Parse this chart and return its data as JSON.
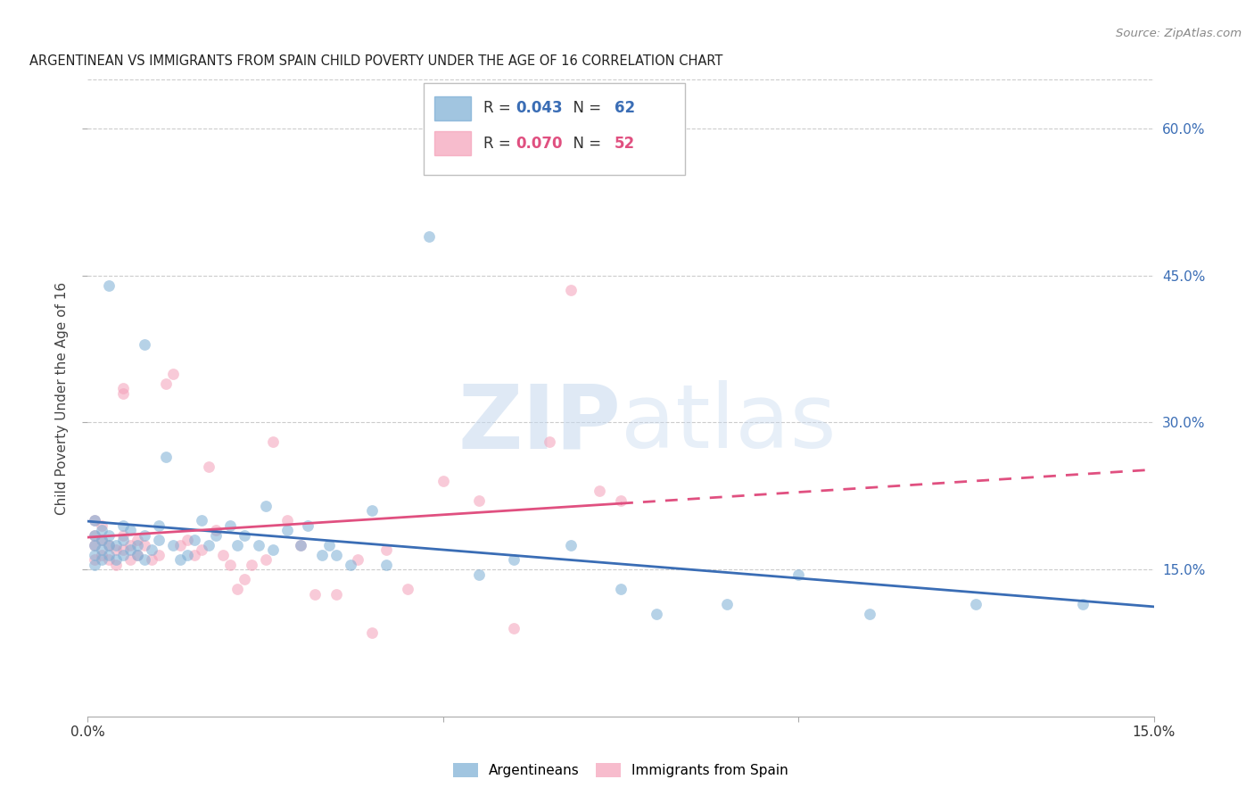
{
  "title": "ARGENTINEAN VS IMMIGRANTS FROM SPAIN CHILD POVERTY UNDER THE AGE OF 16 CORRELATION CHART",
  "source": "Source: ZipAtlas.com",
  "ylabel": "Child Poverty Under the Age of 16",
  "xlim": [
    0.0,
    0.15
  ],
  "ylim": [
    0.0,
    0.65
  ],
  "yticks": [
    0.15,
    0.3,
    0.45,
    0.6
  ],
  "ytick_labels": [
    "15.0%",
    "30.0%",
    "45.0%",
    "60.0%"
  ],
  "background_color": "#ffffff",
  "grid_color": "#cccccc",
  "blue_color": "#7aadd4",
  "pink_color": "#f4a0b8",
  "line_blue": "#3a6db5",
  "line_pink": "#e05080",
  "watermark_zip": "#c8d8ee",
  "watermark_atlas": "#c8d8ee",
  "marker_size": 85,
  "marker_alpha": 0.55,
  "blue_x": [
    0.001,
    0.001,
    0.001,
    0.001,
    0.001,
    0.002,
    0.002,
    0.002,
    0.002,
    0.003,
    0.003,
    0.003,
    0.004,
    0.004,
    0.005,
    0.005,
    0.005,
    0.006,
    0.006,
    0.007,
    0.007,
    0.008,
    0.008,
    0.009,
    0.01,
    0.01,
    0.011,
    0.012,
    0.013,
    0.014,
    0.015,
    0.016,
    0.017,
    0.018,
    0.02,
    0.021,
    0.022,
    0.024,
    0.025,
    0.026,
    0.028,
    0.03,
    0.031,
    0.033,
    0.034,
    0.035,
    0.037,
    0.04,
    0.042,
    0.048,
    0.055,
    0.06,
    0.068,
    0.075,
    0.08,
    0.09,
    0.1,
    0.11,
    0.125,
    0.14,
    0.003,
    0.008
  ],
  "blue_y": [
    0.185,
    0.175,
    0.165,
    0.155,
    0.2,
    0.17,
    0.16,
    0.18,
    0.19,
    0.175,
    0.165,
    0.185,
    0.16,
    0.175,
    0.18,
    0.165,
    0.195,
    0.17,
    0.19,
    0.165,
    0.175,
    0.185,
    0.16,
    0.17,
    0.18,
    0.195,
    0.265,
    0.175,
    0.16,
    0.165,
    0.18,
    0.2,
    0.175,
    0.185,
    0.195,
    0.175,
    0.185,
    0.175,
    0.215,
    0.17,
    0.19,
    0.175,
    0.195,
    0.165,
    0.175,
    0.165,
    0.155,
    0.21,
    0.155,
    0.49,
    0.145,
    0.16,
    0.175,
    0.13,
    0.105,
    0.115,
    0.145,
    0.105,
    0.115,
    0.115,
    0.44,
    0.38
  ],
  "pink_x": [
    0.001,
    0.001,
    0.001,
    0.001,
    0.002,
    0.002,
    0.002,
    0.003,
    0.003,
    0.004,
    0.004,
    0.005,
    0.005,
    0.006,
    0.006,
    0.007,
    0.007,
    0.008,
    0.009,
    0.01,
    0.011,
    0.012,
    0.013,
    0.014,
    0.015,
    0.016,
    0.017,
    0.018,
    0.019,
    0.02,
    0.021,
    0.022,
    0.023,
    0.025,
    0.026,
    0.028,
    0.03,
    0.032,
    0.035,
    0.038,
    0.04,
    0.042,
    0.045,
    0.05,
    0.055,
    0.06,
    0.065,
    0.068,
    0.072,
    0.075,
    0.005,
    0.005
  ],
  "pink_y": [
    0.2,
    0.185,
    0.175,
    0.16,
    0.18,
    0.165,
    0.195,
    0.175,
    0.16,
    0.17,
    0.155,
    0.185,
    0.17,
    0.175,
    0.16,
    0.18,
    0.165,
    0.175,
    0.16,
    0.165,
    0.34,
    0.35,
    0.175,
    0.18,
    0.165,
    0.17,
    0.255,
    0.19,
    0.165,
    0.155,
    0.13,
    0.14,
    0.155,
    0.16,
    0.28,
    0.2,
    0.175,
    0.125,
    0.125,
    0.16,
    0.085,
    0.17,
    0.13,
    0.24,
    0.22,
    0.09,
    0.28,
    0.435,
    0.23,
    0.22,
    0.335,
    0.33
  ]
}
